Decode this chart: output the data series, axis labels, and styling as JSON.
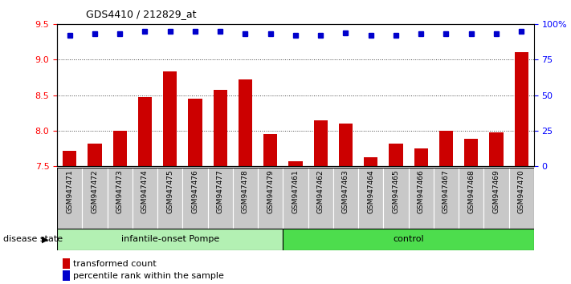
{
  "title": "GDS4410 / 212829_at",
  "samples": [
    "GSM947471",
    "GSM947472",
    "GSM947473",
    "GSM947474",
    "GSM947475",
    "GSM947476",
    "GSM947477",
    "GSM947478",
    "GSM947479",
    "GSM947461",
    "GSM947462",
    "GSM947463",
    "GSM947464",
    "GSM947465",
    "GSM947466",
    "GSM947467",
    "GSM947468",
    "GSM947469",
    "GSM947470"
  ],
  "transformed_count": [
    7.72,
    7.82,
    8.0,
    8.47,
    8.84,
    8.45,
    8.57,
    8.72,
    7.95,
    7.57,
    8.15,
    8.1,
    7.62,
    7.82,
    7.75,
    8.0,
    7.88,
    7.98,
    9.1
  ],
  "percentile_rank": [
    92,
    93,
    93,
    95,
    95,
    95,
    95,
    93,
    93,
    92,
    92,
    94,
    92,
    92,
    93,
    93,
    93,
    93,
    95
  ],
  "group1_count": 9,
  "group2_count": 10,
  "group1_label": "infantile-onset Pompe",
  "group2_label": "control",
  "disease_state_label": "disease state",
  "ylim_left": [
    7.5,
    9.5
  ],
  "ylim_right": [
    0,
    100
  ],
  "right_ticks": [
    0,
    25,
    50,
    75,
    100
  ],
  "right_tick_labels": [
    "0",
    "25",
    "50",
    "75",
    "100%"
  ],
  "left_ticks": [
    7.5,
    8.0,
    8.5,
    9.0,
    9.5
  ],
  "bar_color": "#cc0000",
  "dot_color": "#0000cc",
  "bar_width": 0.55,
  "grid_color": "#444444",
  "cell_bg": "#c8c8c8",
  "cell_border": "#ffffff",
  "group1_bg": "#b3f0b3",
  "group2_bg": "#4ddd4d",
  "legend_red": "#cc0000",
  "legend_blue": "#0000cc"
}
